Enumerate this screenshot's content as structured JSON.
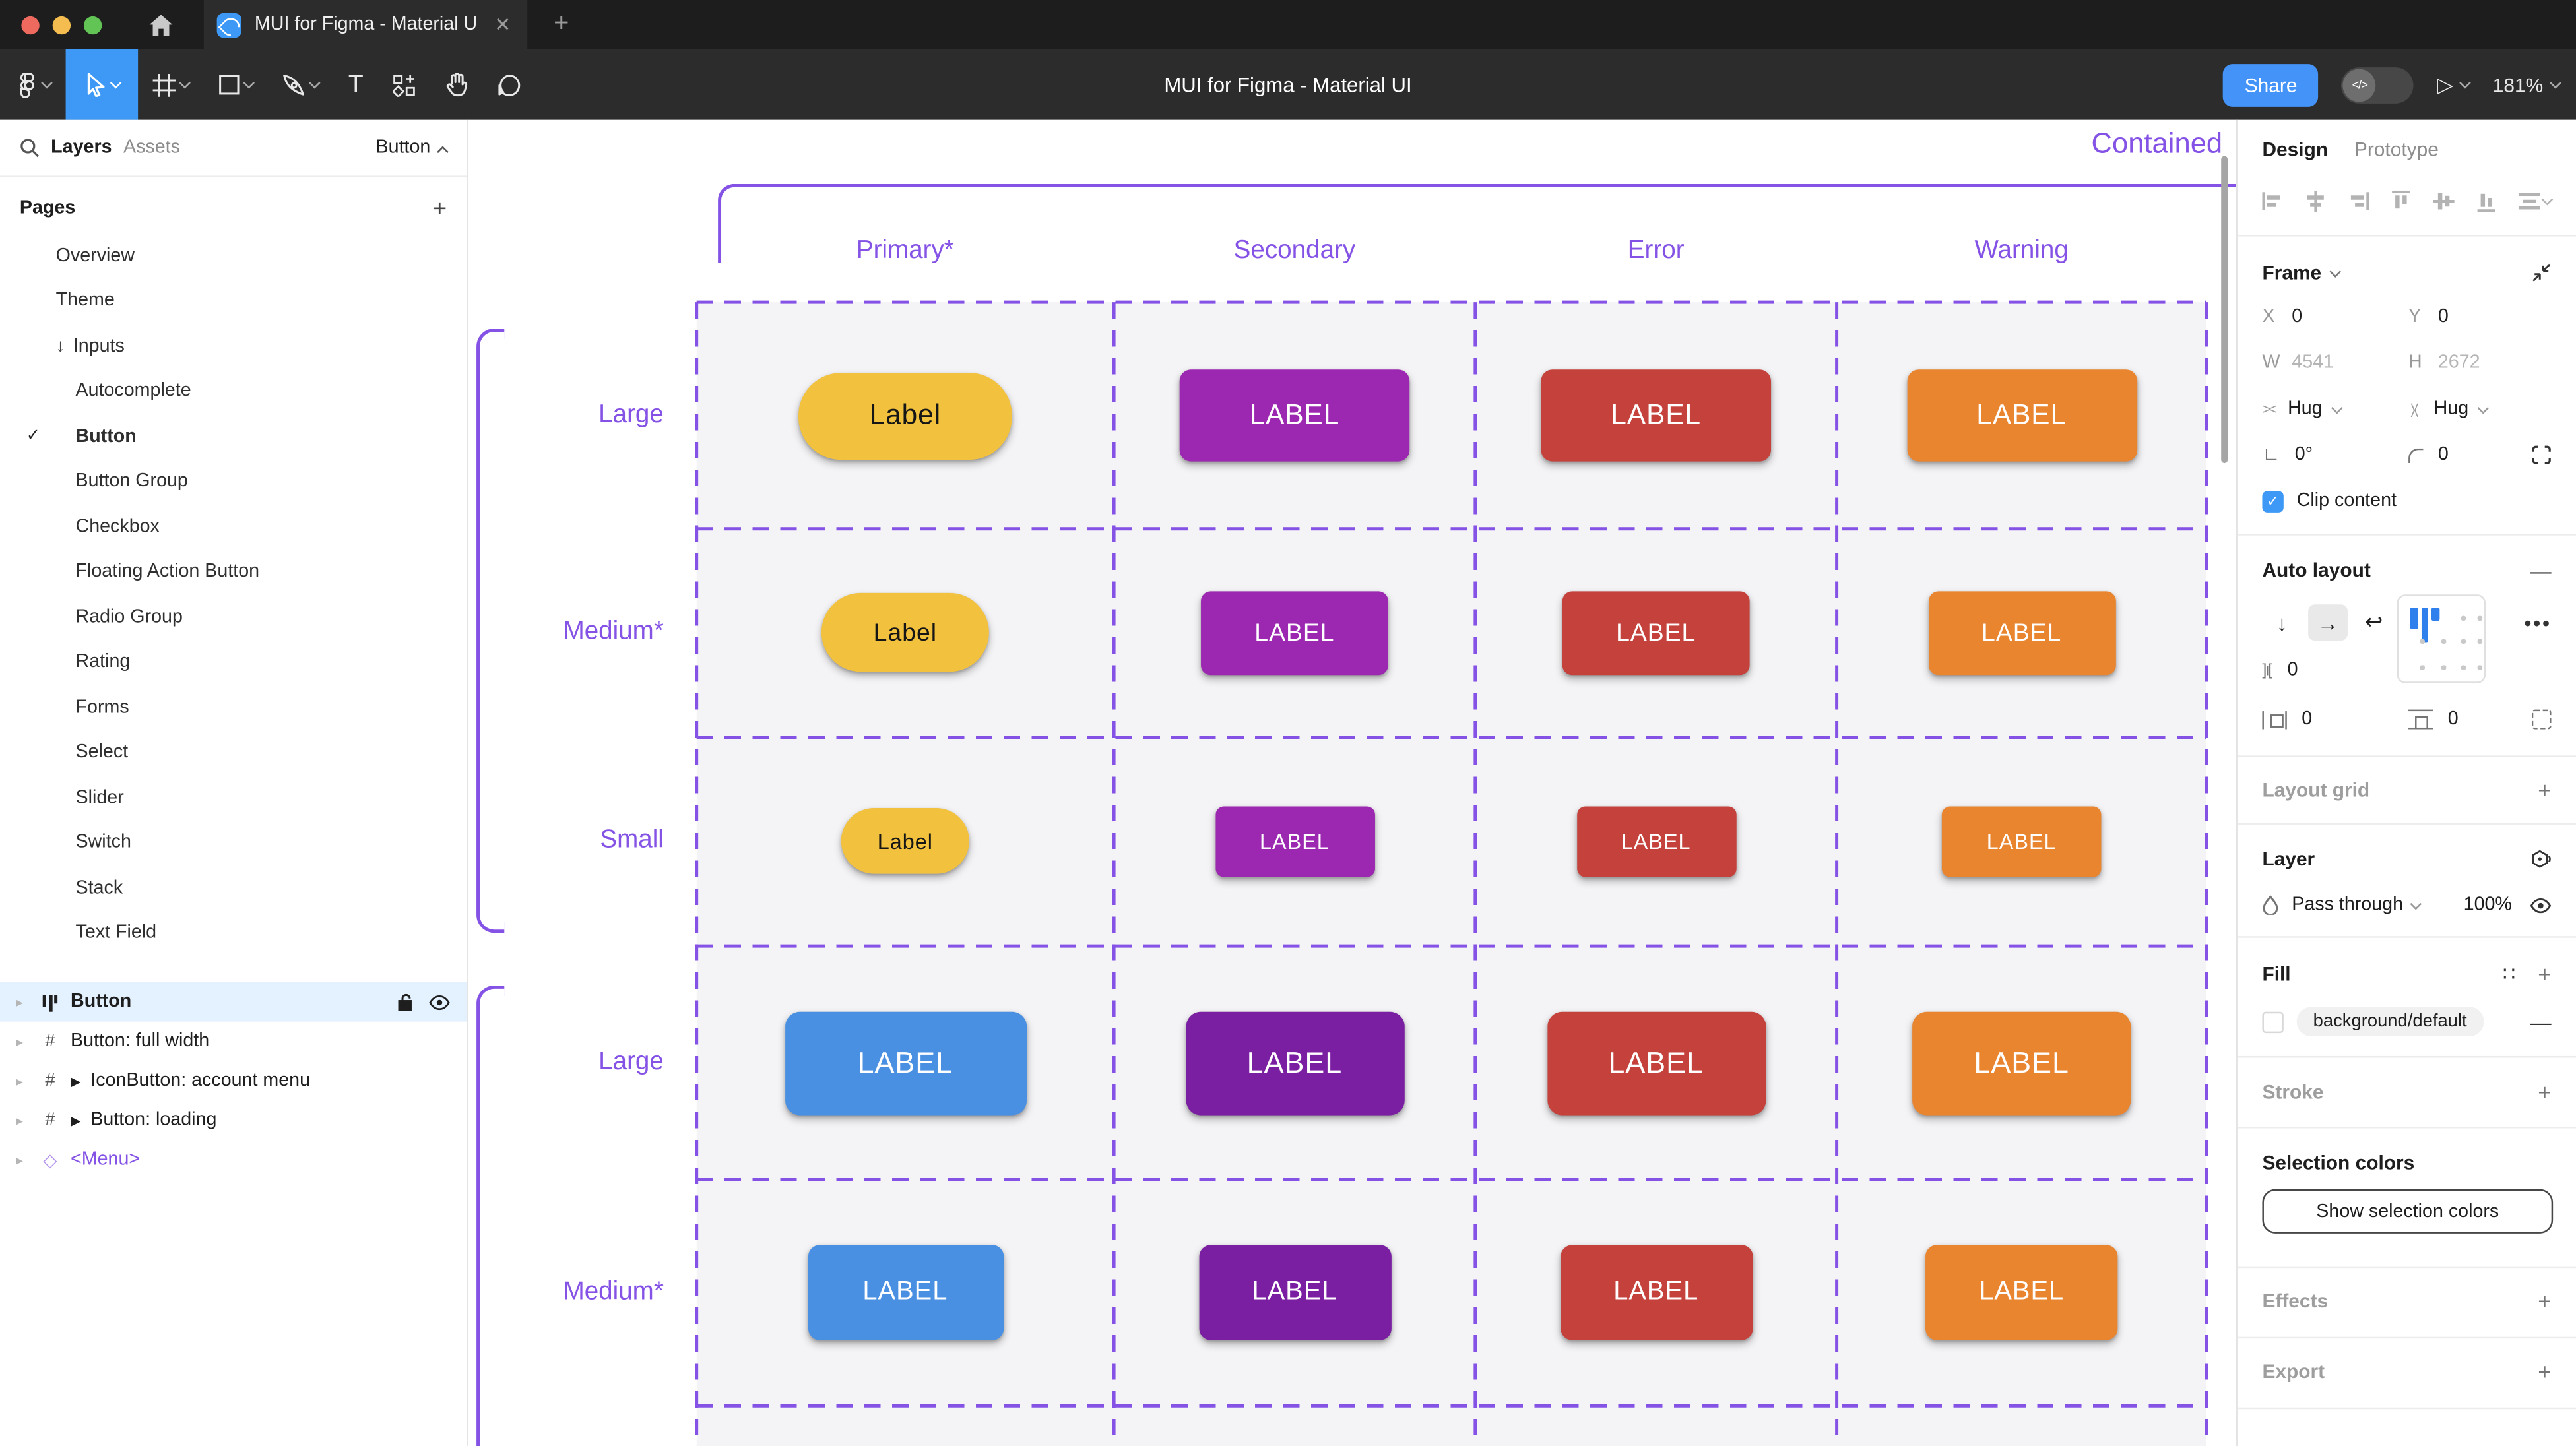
{
  "window": {
    "tab_title": "MUI for Figma - Material UI",
    "toolbar_title": "MUI for Figma - Material UI",
    "share_label": "Share",
    "zoom_level": "181%",
    "traffic_colors": [
      "#EE6A5F",
      "#F5BD4F",
      "#61C454"
    ]
  },
  "sidebar": {
    "tab_layers": "Layers",
    "tab_assets": "Assets",
    "filter_label": "Button",
    "pages_title": "Pages",
    "pages": [
      {
        "label": "Overview",
        "indent": 1
      },
      {
        "label": "Theme",
        "indent": 1
      },
      {
        "label": "Inputs",
        "indent": 1,
        "arrow": true
      },
      {
        "label": "Autocomplete",
        "indent": 2
      },
      {
        "label": "Button",
        "indent": 2,
        "checked": true,
        "bold": true
      },
      {
        "label": "Button Group",
        "indent": 2
      },
      {
        "label": "Checkbox",
        "indent": 2
      },
      {
        "label": "Floating Action Button",
        "indent": 2
      },
      {
        "label": "Radio Group",
        "indent": 2
      },
      {
        "label": "Rating",
        "indent": 2
      },
      {
        "label": "Forms",
        "indent": 2
      },
      {
        "label": "Select",
        "indent": 2
      },
      {
        "label": "Slider",
        "indent": 2
      },
      {
        "label": "Switch",
        "indent": 2
      },
      {
        "label": "Stack",
        "indent": 2
      },
      {
        "label": "Text Field",
        "indent": 2
      }
    ],
    "layers": [
      {
        "label": "Button",
        "icon": "autolayout",
        "selected": true,
        "bold": true,
        "lock": true,
        "eye": true
      },
      {
        "label": "Button: full width",
        "icon": "frame"
      },
      {
        "label": "IconButton: account menu",
        "icon": "frame",
        "play": true
      },
      {
        "label": "Button: loading",
        "icon": "frame",
        "play": true
      },
      {
        "label": "<Menu>",
        "icon": "diamond",
        "purple": true
      }
    ]
  },
  "canvas": {
    "frame_title": "Contained",
    "annotation_color": "#8552E6",
    "columns": [
      "Primary*",
      "Secondary",
      "Error",
      "Warning"
    ],
    "rows": [
      {
        "label": "Large",
        "buttons": [
          {
            "label": "Label",
            "bg": "#F2C13D",
            "fg": "#161616",
            "w": 130,
            "h": 53,
            "radius": 26,
            "font": 17
          },
          {
            "label": "LABEL",
            "bg": "#9C27B0",
            "fg": "#FFFFFF",
            "w": 140,
            "h": 56,
            "radius": 7,
            "font": 17
          },
          {
            "label": "LABEL",
            "bg": "#C5423C",
            "fg": "#FFFFFF",
            "w": 140,
            "h": 56,
            "radius": 7,
            "font": 17
          },
          {
            "label": "LABEL",
            "bg": "#E9842F",
            "fg": "#FFFFFF",
            "w": 140,
            "h": 56,
            "radius": 7,
            "font": 17
          }
        ]
      },
      {
        "label": "Medium*",
        "buttons": [
          {
            "label": "Label",
            "bg": "#F2C13D",
            "fg": "#161616",
            "w": 102,
            "h": 48,
            "radius": 24,
            "font": 15
          },
          {
            "label": "LABEL",
            "bg": "#9C27B0",
            "fg": "#FFFFFF",
            "w": 114,
            "h": 51,
            "radius": 6,
            "font": 15
          },
          {
            "label": "LABEL",
            "bg": "#C5423C",
            "fg": "#FFFFFF",
            "w": 114,
            "h": 51,
            "radius": 6,
            "font": 15
          },
          {
            "label": "LABEL",
            "bg": "#E9842F",
            "fg": "#FFFFFF",
            "w": 114,
            "h": 51,
            "radius": 6,
            "font": 15
          }
        ]
      },
      {
        "label": "Small",
        "buttons": [
          {
            "label": "Label",
            "bg": "#F2C13D",
            "fg": "#161616",
            "w": 78,
            "h": 40,
            "radius": 20,
            "font": 13
          },
          {
            "label": "LABEL",
            "bg": "#9C27B0",
            "fg": "#FFFFFF",
            "w": 97,
            "h": 43,
            "radius": 5,
            "font": 13
          },
          {
            "label": "LABEL",
            "bg": "#C5423C",
            "fg": "#FFFFFF",
            "w": 97,
            "h": 43,
            "radius": 5,
            "font": 13
          },
          {
            "label": "LABEL",
            "bg": "#E9842F",
            "fg": "#FFFFFF",
            "w": 97,
            "h": 43,
            "radius": 5,
            "font": 13
          }
        ]
      },
      {
        "label": "Large",
        "buttons": [
          {
            "label": "LABEL",
            "bg": "#4A90E2",
            "fg": "#FFFFFF",
            "w": 147,
            "h": 63,
            "radius": 9,
            "font": 18
          },
          {
            "label": "LABEL",
            "bg": "#7B1FA2",
            "fg": "#FFFFFF",
            "w": 133,
            "h": 63,
            "radius": 9,
            "font": 18
          },
          {
            "label": "LABEL",
            "bg": "#C5423C",
            "fg": "#FFFFFF",
            "w": 133,
            "h": 63,
            "radius": 9,
            "font": 18
          },
          {
            "label": "LABEL",
            "bg": "#E9842F",
            "fg": "#FFFFFF",
            "w": 133,
            "h": 63,
            "radius": 9,
            "font": 18
          }
        ]
      },
      {
        "label": "Medium*",
        "buttons": [
          {
            "label": "LABEL",
            "bg": "#4A90E2",
            "fg": "#FFFFFF",
            "w": 119,
            "h": 58,
            "radius": 7,
            "font": 16
          },
          {
            "label": "LABEL",
            "bg": "#7B1FA2",
            "fg": "#FFFFFF",
            "w": 117,
            "h": 58,
            "radius": 7,
            "font": 16
          },
          {
            "label": "LABEL",
            "bg": "#C5423C",
            "fg": "#FFFFFF",
            "w": 117,
            "h": 58,
            "radius": 7,
            "font": 16
          },
          {
            "label": "LABEL",
            "bg": "#E9842F",
            "fg": "#FFFFFF",
            "w": 117,
            "h": 58,
            "radius": 7,
            "font": 16
          }
        ]
      }
    ]
  },
  "inspector": {
    "tab_design": "Design",
    "tab_prototype": "Prototype",
    "frame": {
      "title": "Frame",
      "x_label": "X",
      "x": "0",
      "y_label": "Y",
      "y": "0",
      "w_label": "W",
      "w": "4541",
      "h_label": "H",
      "h": "2672",
      "hug_h": "Hug",
      "hug_v": "Hug",
      "rotation": "0°",
      "corner_radius": "0",
      "clip_label": "Clip content"
    },
    "auto_layout": {
      "title": "Auto layout",
      "gap": "0",
      "pad_h": "0",
      "pad_v": "0"
    },
    "layout_grid_title": "Layout grid",
    "layer": {
      "title": "Layer",
      "blend_mode": "Pass through",
      "opacity": "100%"
    },
    "fill": {
      "title": "Fill",
      "token": "background/default"
    },
    "stroke_title": "Stroke",
    "selection": {
      "title": "Selection colors",
      "button_label": "Show selection colors"
    },
    "effects_title": "Effects",
    "export_title": "Export"
  }
}
